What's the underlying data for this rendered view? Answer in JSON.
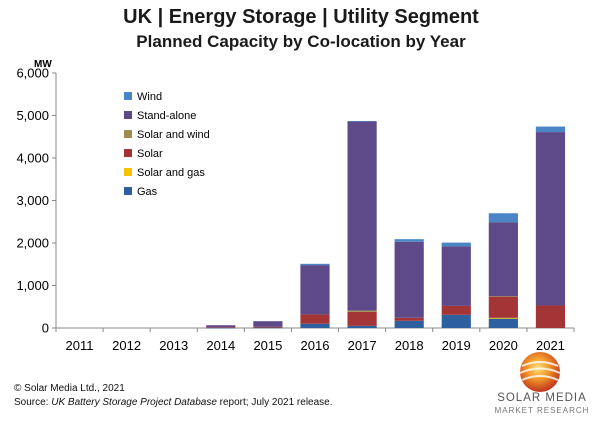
{
  "chart_data": {
    "type": "bar",
    "stacked": true,
    "title": "UK | Energy Storage | Utility Segment",
    "subtitle": "Planned Capacity by Co-location by Year",
    "ylabel": "MW",
    "ylim": [
      0,
      6000
    ],
    "yticks": [
      "0",
      "1,000",
      "2,000",
      "3,000",
      "4,000",
      "5,000",
      "6,000"
    ],
    "ytick_values": [
      0,
      1000,
      2000,
      3000,
      4000,
      5000,
      6000
    ],
    "categories": [
      "2011",
      "2012",
      "2013",
      "2014",
      "2015",
      "2016",
      "2017",
      "2018",
      "2019",
      "2020",
      "2021"
    ],
    "grid": false,
    "legend_position": "top-left",
    "series": [
      {
        "name": "Gas",
        "color": "#2E5F9E",
        "values": [
          0,
          0,
          0,
          5,
          10,
          100,
          50,
          170,
          310,
          220,
          0
        ]
      },
      {
        "name": "Solar and gas",
        "color": "#F5C400",
        "values": [
          0,
          0,
          0,
          0,
          0,
          0,
          0,
          0,
          0,
          20,
          0
        ]
      },
      {
        "name": "Solar",
        "color": "#A33536",
        "values": [
          0,
          0,
          0,
          10,
          20,
          220,
          330,
          70,
          210,
          500,
          530
        ]
      },
      {
        "name": "Solar and wind",
        "color": "#9C8E4F",
        "values": [
          0,
          0,
          0,
          0,
          0,
          0,
          30,
          0,
          0,
          10,
          0
        ]
      },
      {
        "name": "Stand-alone",
        "color": "#5E4A88",
        "values": [
          0,
          0,
          0,
          50,
          130,
          1160,
          4450,
          1790,
          1400,
          1740,
          4080
        ]
      },
      {
        "name": "Wind",
        "color": "#4A86C6",
        "values": [
          0,
          0,
          0,
          0,
          0,
          30,
          10,
          60,
          90,
          210,
          130
        ]
      }
    ]
  },
  "legend_order": [
    "Wind",
    "Stand-alone",
    "Solar and wind",
    "Solar",
    "Solar and gas",
    "Gas"
  ],
  "footer": {
    "copyright": "© Solar Media Ltd., 2021",
    "source_prefix": "Source: ",
    "source_report": "UK Battery Storage Project Database",
    "source_suffix": " report; July 2021 release."
  },
  "logo": {
    "name": "SOLAR MEDIA",
    "tagline": "MARKET RESEARCH"
  }
}
